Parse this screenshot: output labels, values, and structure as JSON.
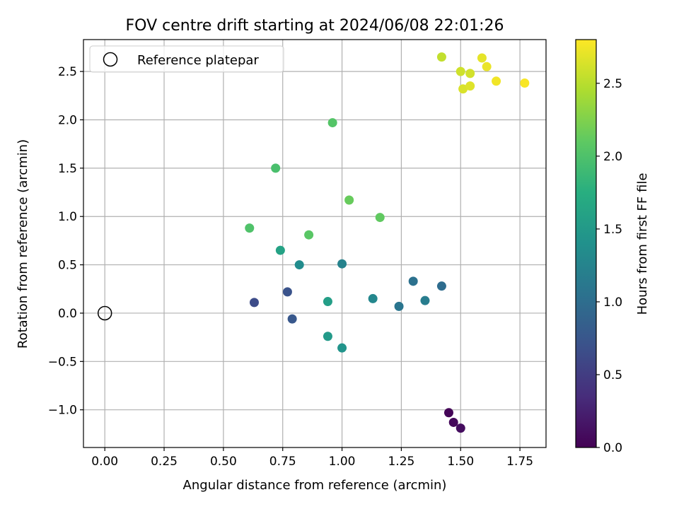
{
  "chart_data": {
    "type": "scatter",
    "title": "FOV centre drift starting at 2024/06/08 22:01:26",
    "xlabel": "Angular distance from reference (arcmin)",
    "ylabel": "Rotation from reference (arcmin)",
    "xlim": [
      -0.09,
      1.86
    ],
    "ylim": [
      -1.39,
      2.83
    ],
    "xticks": [
      0.0,
      0.25,
      0.5,
      0.75,
      1.0,
      1.25,
      1.5,
      1.75
    ],
    "xtick_labels": [
      "0.00",
      "0.25",
      "0.50",
      "0.75",
      "1.00",
      "1.25",
      "1.50",
      "1.75"
    ],
    "yticks": [
      -1.0,
      -0.5,
      0.0,
      0.5,
      1.0,
      1.5,
      2.0,
      2.5
    ],
    "ytick_labels": [
      "−1.0",
      "−0.5",
      "0.0",
      "0.5",
      "1.0",
      "1.5",
      "2.0",
      "2.5"
    ],
    "grid": true,
    "legend": {
      "placement": "upper-left",
      "entries": [
        {
          "label": "Reference platepar",
          "marker": "hollow-circle",
          "color": "#000000"
        }
      ]
    },
    "reference_point": {
      "x": 0.0,
      "y": 0.0
    },
    "colorbar": {
      "label": "Hours from first FF file",
      "colormap": "viridis",
      "range": [
        0.0,
        2.8
      ],
      "ticks": [
        0.0,
        0.5,
        1.0,
        1.5,
        2.0,
        2.5
      ],
      "tick_labels": [
        "0.0",
        "0.5",
        "1.0",
        "1.5",
        "2.0",
        "2.5"
      ]
    },
    "points": [
      {
        "x": 1.45,
        "y": -1.03,
        "c": 0.03
      },
      {
        "x": 1.47,
        "y": -1.13,
        "c": 0.06
      },
      {
        "x": 1.5,
        "y": -1.19,
        "c": 0.1
      },
      {
        "x": 0.63,
        "y": 0.11,
        "c": 0.65
      },
      {
        "x": 0.77,
        "y": 0.22,
        "c": 0.72
      },
      {
        "x": 0.79,
        "y": -0.06,
        "c": 0.78
      },
      {
        "x": 1.42,
        "y": 0.28,
        "c": 1.0
      },
      {
        "x": 1.3,
        "y": 0.33,
        "c": 1.05
      },
      {
        "x": 1.24,
        "y": 0.07,
        "c": 1.1
      },
      {
        "x": 1.35,
        "y": 0.13,
        "c": 1.18
      },
      {
        "x": 1.0,
        "y": 0.51,
        "c": 1.25
      },
      {
        "x": 1.13,
        "y": 0.15,
        "c": 1.3
      },
      {
        "x": 0.82,
        "y": 0.5,
        "c": 1.36
      },
      {
        "x": 1.0,
        "y": -0.36,
        "c": 1.45
      },
      {
        "x": 0.94,
        "y": -0.24,
        "c": 1.52
      },
      {
        "x": 0.94,
        "y": 0.12,
        "c": 1.57
      },
      {
        "x": 0.74,
        "y": 0.65,
        "c": 1.62
      },
      {
        "x": 0.61,
        "y": 0.88,
        "c": 2.02
      },
      {
        "x": 0.86,
        "y": 0.81,
        "c": 2.08
      },
      {
        "x": 1.16,
        "y": 0.99,
        "c": 2.12
      },
      {
        "x": 1.03,
        "y": 1.17,
        "c": 2.15
      },
      {
        "x": 0.72,
        "y": 1.5,
        "c": 1.98
      },
      {
        "x": 0.96,
        "y": 1.97,
        "c": 2.05
      },
      {
        "x": 1.42,
        "y": 2.65,
        "c": 2.55
      },
      {
        "x": 1.5,
        "y": 2.5,
        "c": 2.6
      },
      {
        "x": 1.54,
        "y": 2.48,
        "c": 2.62
      },
      {
        "x": 1.51,
        "y": 2.32,
        "c": 2.65
      },
      {
        "x": 1.54,
        "y": 2.35,
        "c": 2.67
      },
      {
        "x": 1.59,
        "y": 2.64,
        "c": 2.7
      },
      {
        "x": 1.61,
        "y": 2.55,
        "c": 2.72
      },
      {
        "x": 1.65,
        "y": 2.4,
        "c": 2.75
      },
      {
        "x": 1.77,
        "y": 2.38,
        "c": 2.78
      }
    ]
  }
}
